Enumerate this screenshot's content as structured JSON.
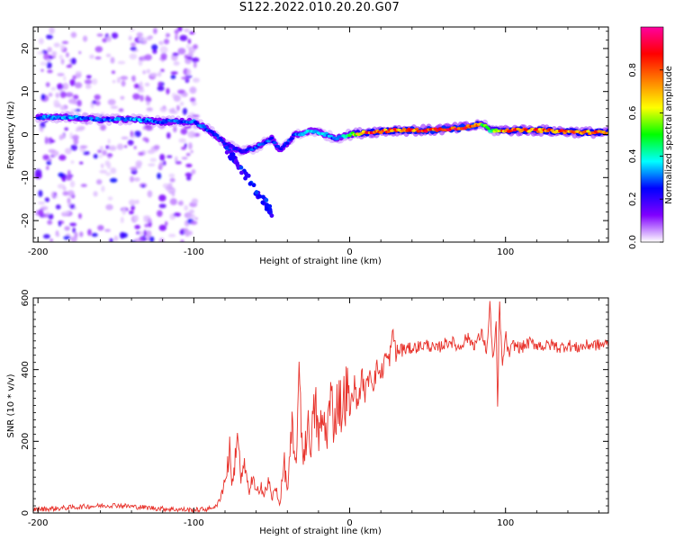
{
  "title": "S122.2022.010.20.20.G07",
  "chart_data": [
    {
      "type": "heatmap",
      "xlabel": "Height of straight line (km)",
      "ylabel": "Frequency (Hz)",
      "xlim": [
        -203,
        166
      ],
      "ylim": [
        -25,
        25
      ],
      "x_ticks": [
        "-200",
        "-100",
        "0",
        "100"
      ],
      "x_tick_values": [
        -200,
        -100,
        0,
        100
      ],
      "y_ticks": [
        "20",
        "10",
        "0",
        "-10",
        "-20"
      ],
      "y_tick_values": [
        20,
        10,
        0,
        -10,
        -20
      ],
      "colorbar": {
        "label": "Normalized spectral amplitude",
        "range": [
          0,
          1
        ],
        "ticks": [
          "0.0",
          "0.2",
          "0.4",
          "0.6",
          "0.8"
        ],
        "tick_values": [
          0.0,
          0.2,
          0.4,
          0.6,
          0.8
        ],
        "colors": [
          "#ffffff",
          "#8000ff",
          "#0000ff",
          "#00ffff",
          "#00ff00",
          "#ffff00",
          "#ff8000",
          "#ff0000",
          "#ff00a0"
        ]
      },
      "ridge": {
        "x": [
          -200,
          -180,
          -160,
          -140,
          -120,
          -100,
          -90,
          -80,
          -70,
          -60,
          -50,
          -45,
          -40,
          -35,
          -30,
          -25,
          -20,
          -15,
          -10,
          -5,
          0,
          10,
          30,
          50,
          70,
          80,
          85,
          90,
          100,
          120,
          150,
          166
        ],
        "freq": [
          4,
          4,
          3.5,
          3.5,
          3,
          3,
          1,
          -2,
          -4,
          -3,
          -1,
          -3.5,
          -2,
          0,
          0,
          1,
          0.5,
          0,
          -1,
          -0.5,
          0,
          0.5,
          1,
          1,
          1.5,
          2,
          2.5,
          1,
          1,
          1,
          0.5,
          0.5
        ],
        "amplitude": [
          0.3,
          0.35,
          0.3,
          0.35,
          0.3,
          0.3,
          0.3,
          0.25,
          0.25,
          0.3,
          0.3,
          0.25,
          0.3,
          0.3,
          0.35,
          0.4,
          0.35,
          0.35,
          0.3,
          0.35,
          0.5,
          0.85,
          0.85,
          0.9,
          0.9,
          0.95,
          0.55,
          0.5,
          0.85,
          0.85,
          0.8,
          0.8
        ]
      }
    },
    {
      "type": "line",
      "xlabel": "Height of straight line (km)",
      "ylabel": "SNR (10 * v/v)",
      "xlim": [
        -203,
        166
      ],
      "ylim": [
        0,
        600
      ],
      "x_ticks": [
        "-200",
        "-100",
        "0",
        "100"
      ],
      "x_tick_values": [
        -200,
        -100,
        0,
        100
      ],
      "y_ticks": [
        "0",
        "200",
        "400",
        "600"
      ],
      "y_tick_values": [
        0,
        200,
        400,
        600
      ],
      "color": "#e8322b",
      "series": [
        {
          "x": [
            -203,
            -190,
            -180,
            -170,
            -160,
            -150,
            -140,
            -130,
            -120,
            -110,
            -100,
            -95,
            -90,
            -85,
            -82,
            -80,
            -77,
            -75,
            -72,
            -70,
            -67,
            -65,
            -62,
            -60,
            -57,
            -55,
            -52,
            -50,
            -47,
            -45,
            -42,
            -40,
            -37,
            -35,
            -32,
            -30,
            -27,
            -25,
            -22,
            -20,
            -17,
            -15,
            -12,
            -10,
            -7,
            -5,
            -2,
            0,
            3,
            5,
            8,
            10,
            13,
            15,
            18,
            20,
            23,
            25,
            28,
            30,
            33,
            35,
            40,
            45,
            50,
            55,
            60,
            65,
            70,
            75,
            80,
            85,
            88,
            90,
            92,
            94,
            95,
            96,
            98,
            100,
            102,
            105,
            110,
            115,
            120,
            125,
            130,
            135,
            140,
            145,
            150,
            155,
            160,
            166
          ],
          "y": [
            10,
            12,
            15,
            18,
            20,
            22,
            18,
            15,
            12,
            10,
            8,
            10,
            12,
            20,
            60,
            90,
            170,
            70,
            240,
            90,
            130,
            60,
            95,
            50,
            85,
            45,
            90,
            40,
            70,
            20,
            140,
            60,
            230,
            120,
            370,
            150,
            240,
            200,
            300,
            210,
            260,
            220,
            320,
            250,
            330,
            280,
            350,
            280,
            360,
            300,
            380,
            330,
            400,
            360,
            410,
            380,
            440,
            420,
            500,
            440,
            460,
            455,
            460,
            465,
            470,
            455,
            470,
            480,
            460,
            490,
            470,
            500,
            450,
            580,
            420,
            520,
            270,
            600,
            400,
            500,
            440,
            470,
            460,
            475,
            470,
            465,
            470,
            460,
            470,
            460,
            465,
            470,
            468,
            472
          ]
        }
      ]
    }
  ]
}
